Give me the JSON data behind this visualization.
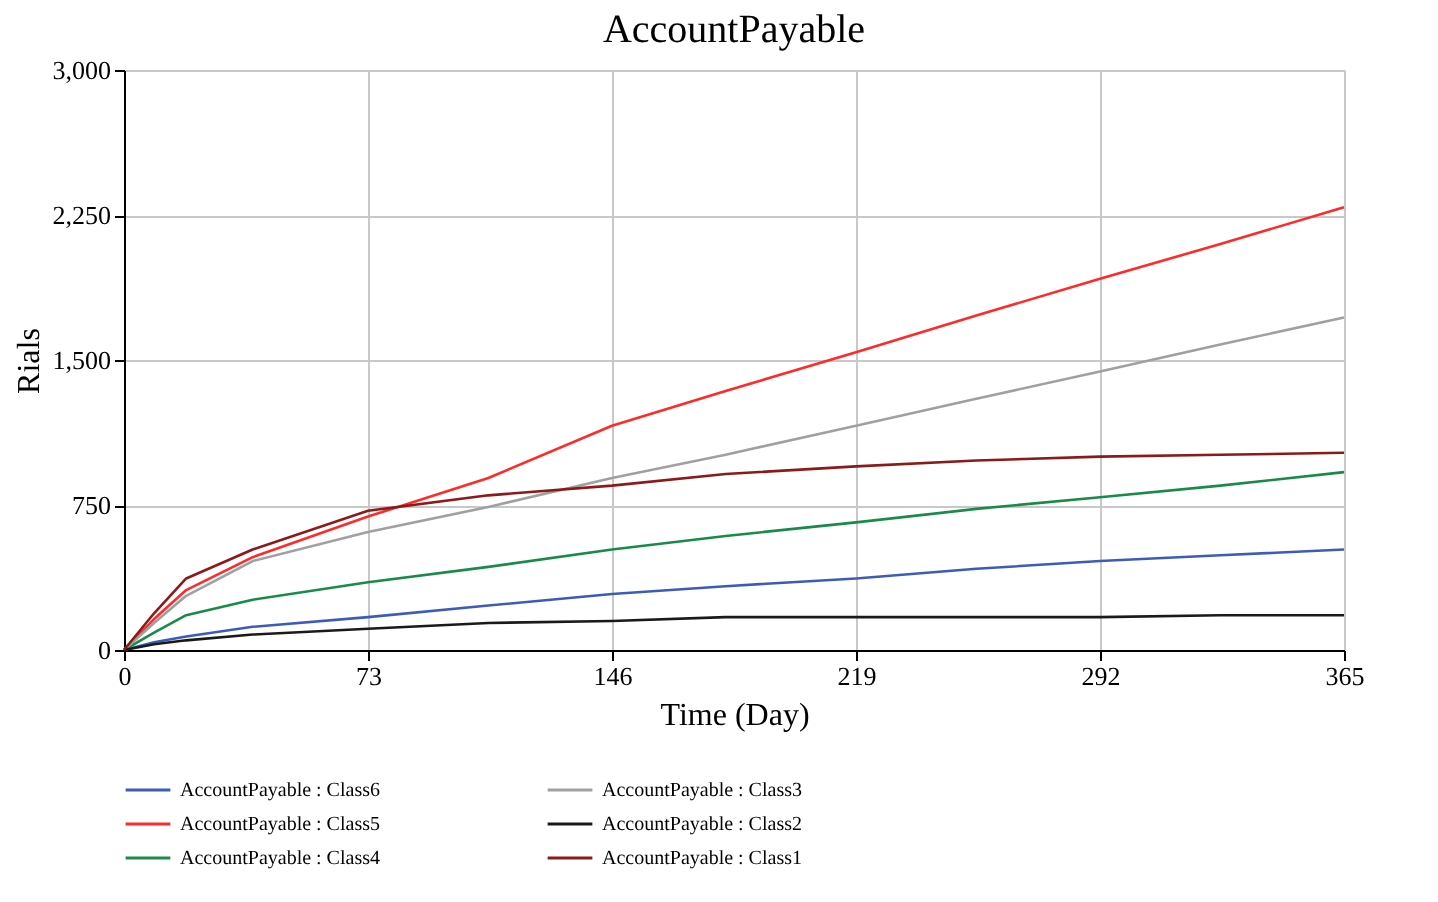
{
  "chart_data": {
    "type": "line",
    "title": "AccountPayable",
    "xlabel": "Time (Day)",
    "ylabel": "Rials",
    "x": [
      0,
      9,
      18.6,
      38.5,
      73,
      109,
      146,
      180,
      219,
      255,
      292,
      328,
      365
    ],
    "xlim": [
      0,
      365
    ],
    "xticks": [
      0,
      73,
      146,
      219,
      292,
      365
    ],
    "ylim": [
      0,
      3000
    ],
    "yticks": [
      {
        "value": 0,
        "label": "0"
      },
      {
        "value": 750,
        "label": "750"
      },
      {
        "value": 1500,
        "label": "1,500"
      },
      {
        "value": 2250,
        "label": "2,250"
      },
      {
        "value": 3000,
        "label": "3,000"
      }
    ],
    "grid": true,
    "legend": "bottom",
    "marker": "none",
    "line_style": "solid",
    "series": [
      {
        "name": "AccountPayable : Class6",
        "color": "#3d5cb8",
        "values": [
          0,
          40,
          70,
          120,
          170,
          230,
          290,
          330,
          370,
          420,
          460,
          490,
          520
        ]
      },
      {
        "name": "AccountPayable : Class5",
        "color": "#ff2a2a",
        "values": [
          0,
          160,
          310,
          480,
          690,
          890,
          1160,
          1340,
          1540,
          1730,
          1920,
          2100,
          2290
        ]
      },
      {
        "name": "AccountPayable : Class4",
        "color": "#1a8a4a",
        "values": [
          0,
          90,
          180,
          260,
          350,
          430,
          520,
          590,
          660,
          730,
          790,
          850,
          920
        ]
      },
      {
        "name": "AccountPayable : Class3",
        "color": "#a0a0a0",
        "values": [
          0,
          140,
          280,
          460,
          610,
          740,
          890,
          1010,
          1160,
          1300,
          1440,
          1580,
          1720
        ]
      },
      {
        "name": "AccountPayable : Class2",
        "color": "#1a1a1a",
        "values": [
          0,
          30,
          50,
          80,
          110,
          140,
          150,
          170,
          170,
          170,
          170,
          180,
          180
        ]
      },
      {
        "name": "AccountPayable : Class1",
        "color": "#8b1a1a",
        "values": [
          0,
          190,
          370,
          520,
          720,
          800,
          850,
          910,
          950,
          980,
          1000,
          1010,
          1020
        ]
      }
    ]
  }
}
